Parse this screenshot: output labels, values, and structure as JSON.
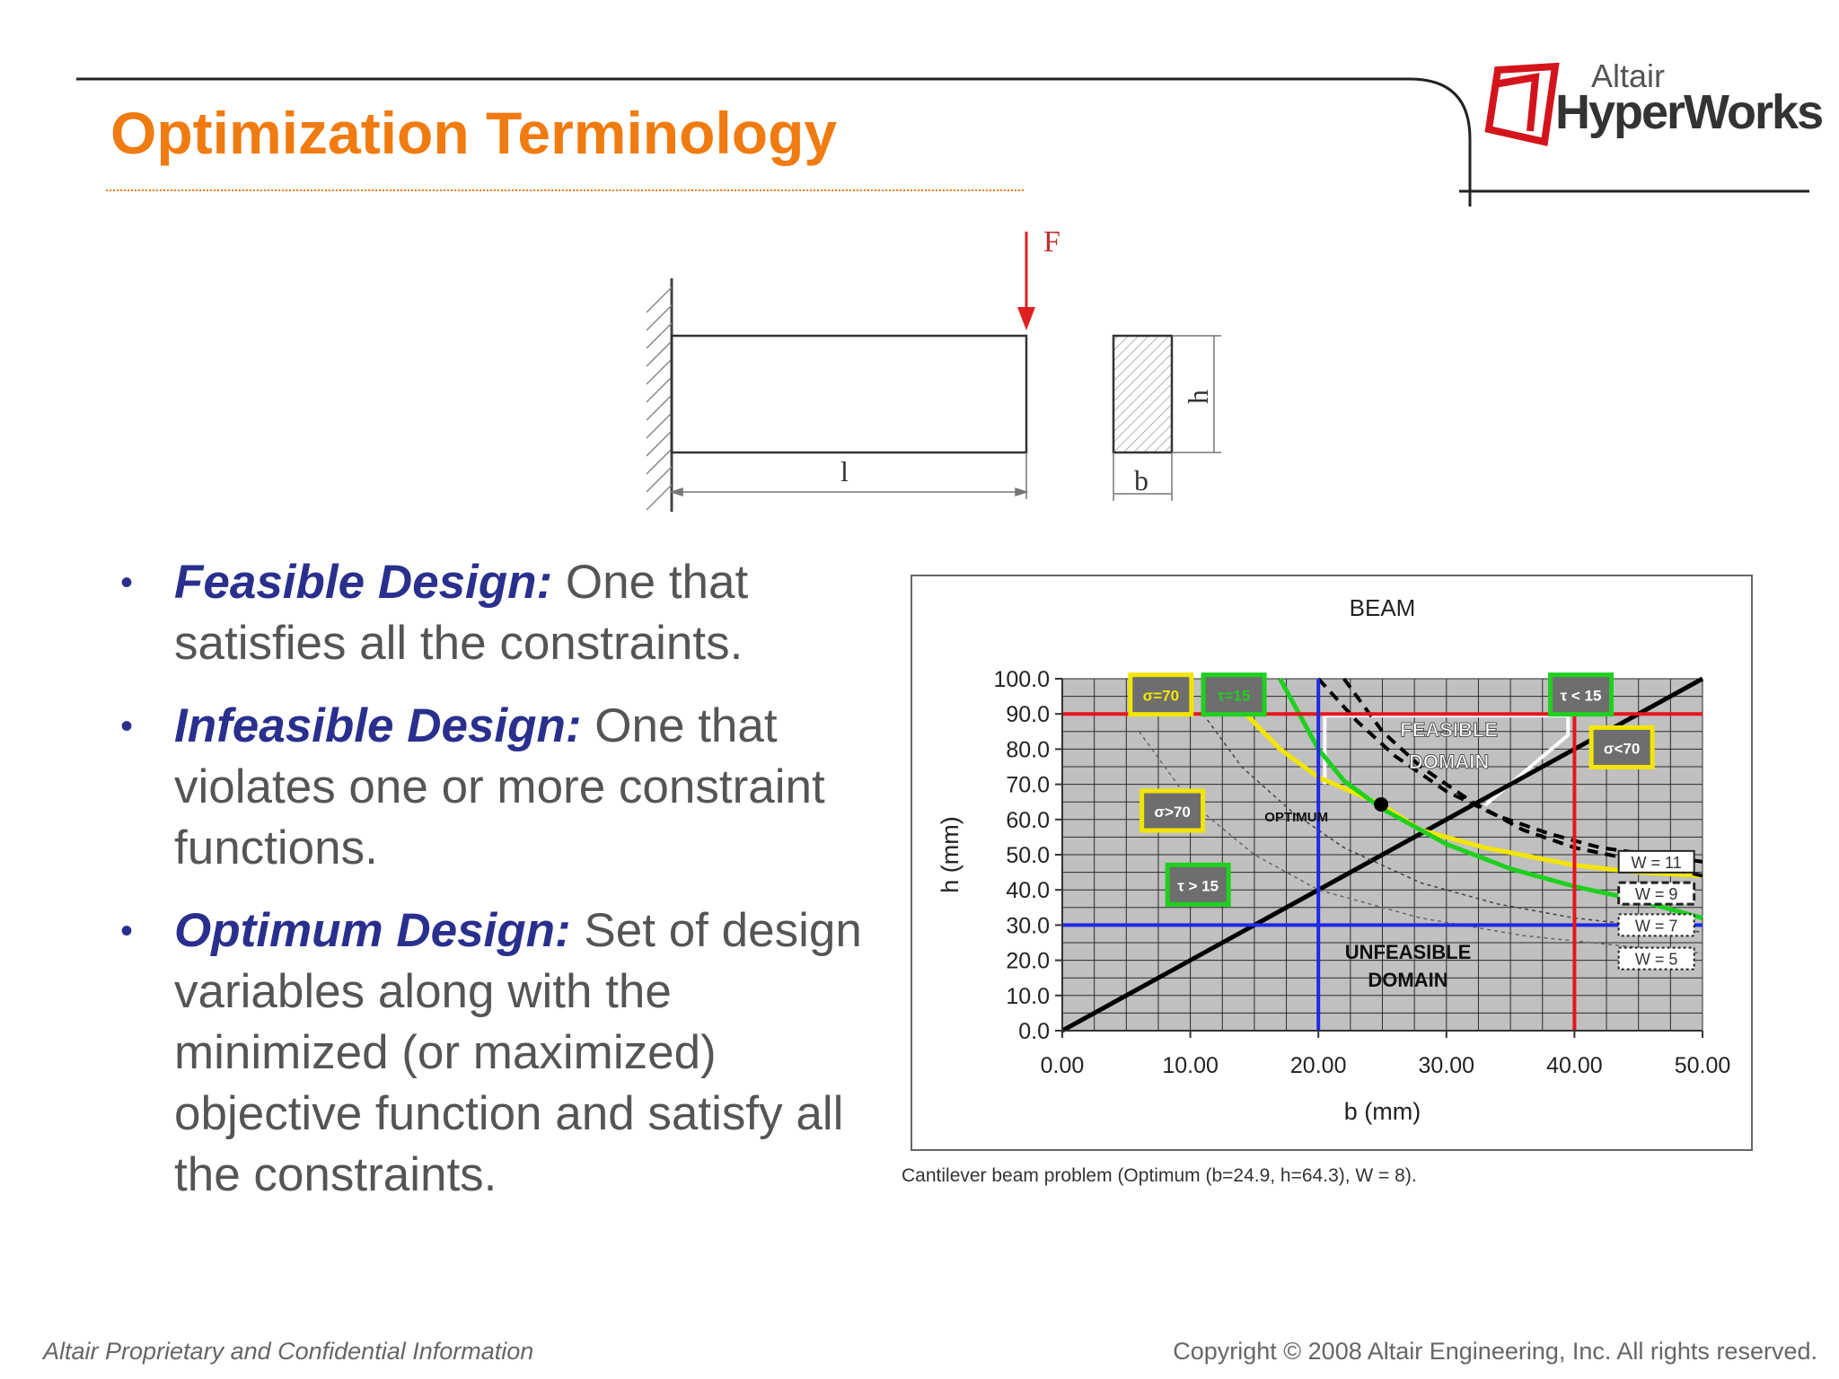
{
  "slide": {
    "title": "Optimization Terminology",
    "logo": {
      "top": "Altair",
      "bottom": "HyperWorks"
    },
    "bullets": [
      {
        "term": "Feasible Design:",
        "text": " One that satisfies all the constraints."
      },
      {
        "term": "Infeasible Design:",
        "text": " One that violates one or more constraint functions."
      },
      {
        "term": "Optimum Design:",
        "text": " Set of design variables along with the minimized (or maximized) objective function and satisfy all the constraints."
      }
    ],
    "caption": "Cantilever beam problem (Optimum (b=24.9, h=64.3), W = 8).",
    "footer_left": "Altair Proprietary and Confidential Information",
    "footer_right": "Copyright © 2008 Altair Engineering, Inc. All rights reserved."
  },
  "beam": {
    "force_label": "F",
    "length_label": "l",
    "width_label": "b",
    "height_label": "h"
  },
  "chart_data": {
    "type": "line",
    "title": "BEAM",
    "xlabel": "b (mm)",
    "ylabel": "h (mm)",
    "xlim": [
      0,
      50
    ],
    "ylim": [
      0,
      100
    ],
    "x_ticks": [
      "0.00",
      "10.00",
      "20.00",
      "30.00",
      "40.00",
      "50.00"
    ],
    "y_ticks": [
      "0.0",
      "10.0",
      "20.0",
      "30.0",
      "40.0",
      "50.0",
      "60.0",
      "70.0",
      "80.0",
      "90.0",
      "100.0"
    ],
    "plot_background": "#c0c0c0",
    "grid": true,
    "constraint_lines": [
      {
        "axis": "y",
        "value": 90,
        "color": "#e8141e"
      },
      {
        "axis": "y",
        "value": 30,
        "color": "#1e28e6"
      },
      {
        "axis": "x",
        "value": 20,
        "color": "#1e28e6"
      },
      {
        "axis": "x",
        "value": 40,
        "color": "#e8141e"
      }
    ],
    "series": [
      {
        "color": "#000000",
        "style": "solid",
        "points": [
          [
            0,
            0
          ],
          [
            50,
            100
          ]
        ]
      },
      {
        "color": "#f2e600",
        "style": "solid",
        "points": [
          [
            13,
            95
          ],
          [
            17,
            80
          ],
          [
            20,
            72
          ],
          [
            24.9,
            64.3
          ],
          [
            28,
            57
          ],
          [
            33,
            52
          ],
          [
            40,
            47
          ],
          [
            45,
            45
          ],
          [
            50,
            44
          ]
        ]
      },
      {
        "color": "#1fd01f",
        "style": "solid",
        "points": [
          [
            17,
            100
          ],
          [
            20,
            80
          ],
          [
            22,
            71
          ],
          [
            25,
            63
          ],
          [
            30,
            53
          ],
          [
            35,
            46
          ],
          [
            40,
            41
          ],
          [
            45,
            37
          ],
          [
            50,
            32
          ]
        ]
      },
      {
        "color": "#000000",
        "style": "dashed",
        "points": [
          [
            22,
            100
          ],
          [
            25,
            85
          ],
          [
            28,
            75
          ],
          [
            32,
            65
          ],
          [
            36,
            57
          ],
          [
            40,
            52
          ],
          [
            44,
            49
          ],
          [
            50,
            44
          ]
        ]
      },
      {
        "color": "#000000",
        "style": "dashed",
        "points": [
          [
            20,
            100
          ],
          [
            23,
            88
          ],
          [
            26,
            78
          ],
          [
            30,
            68
          ],
          [
            34,
            61
          ],
          [
            38,
            56
          ],
          [
            42,
            52
          ],
          [
            50,
            48
          ]
        ]
      },
      {
        "color": "#444444",
        "style": "dotted",
        "points": [
          [
            11,
            90
          ],
          [
            14,
            75
          ],
          [
            18,
            62
          ],
          [
            22,
            52
          ],
          [
            28,
            42
          ],
          [
            34,
            36
          ],
          [
            40,
            32
          ],
          [
            50,
            28
          ]
        ]
      },
      {
        "color": "#666666",
        "style": "dotted",
        "points": [
          [
            6,
            85
          ],
          [
            10,
            65
          ],
          [
            15,
            50
          ],
          [
            20,
            40
          ],
          [
            28,
            32
          ],
          [
            36,
            27
          ],
          [
            44,
            24
          ],
          [
            50,
            22
          ]
        ]
      }
    ],
    "optimum_point": {
      "x": 24.9,
      "y": 64.3,
      "label": "OPTIMUM"
    },
    "regions": [
      {
        "label_line1": "FEASIBLE",
        "label_line2": "DOMAIN"
      },
      {
        "label_line1": "UNFEASIBLE",
        "label_line2": "DOMAIN"
      }
    ],
    "constraint_badges": [
      {
        "label": "σ=70",
        "border": "#f2e600",
        "bg": "#6e6e6e",
        "color": "#f2e600"
      },
      {
        "label": "τ=15",
        "border": "#1fd01f",
        "bg": "#6e6e6e",
        "color": "#1fd01f"
      },
      {
        "label": "τ < 15",
        "border": "#1fd01f",
        "bg": "#6e6e6e",
        "color": "#ffffff"
      },
      {
        "label": "σ<70",
        "border": "#f2e600",
        "bg": "#6e6e6e",
        "color": "#ffffff"
      },
      {
        "label": "σ>70",
        "border": "#f2e600",
        "bg": "#6e6e6e",
        "color": "#ffffff"
      },
      {
        "label": "τ > 15",
        "border": "#1fd01f",
        "bg": "#6e6e6e",
        "color": "#ffffff"
      }
    ],
    "objective_labels": [
      {
        "label": "W = 11",
        "style": "solid"
      },
      {
        "label": "W = 9",
        "style": "dashed"
      },
      {
        "label": "W = 7",
        "style": "dotted"
      },
      {
        "label": "W = 5",
        "style": "dotted"
      }
    ]
  }
}
